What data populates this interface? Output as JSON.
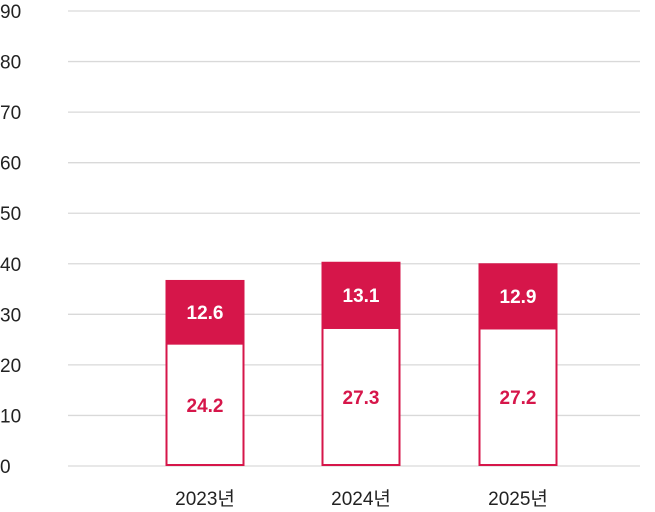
{
  "chart_data": {
    "type": "bar",
    "stacked": true,
    "title": "",
    "xlabel": "",
    "ylabel": "",
    "ylim": [
      0,
      90
    ],
    "yticks": [
      "0",
      "10",
      "20",
      "30",
      "40",
      "50",
      "60",
      "70",
      "80",
      "90"
    ],
    "grid": true,
    "categories": [
      "2023년",
      "2024년",
      "2025년"
    ],
    "series": [
      {
        "values": [
          24.2,
          27.3,
          27.2
        ],
        "labels": [
          "24.2",
          "27.3",
          "27.2"
        ],
        "style": "outline",
        "color": "#d6164a"
      },
      {
        "values": [
          12.6,
          13.1,
          12.9
        ],
        "labels": [
          "12.6",
          "13.1",
          "12.9"
        ],
        "style": "filled",
        "color": "#d6164a"
      }
    ]
  },
  "colors": {
    "accent": "#d6164a",
    "grid": "#d9d9d9",
    "text": "#222222",
    "background": "#ffffff"
  }
}
